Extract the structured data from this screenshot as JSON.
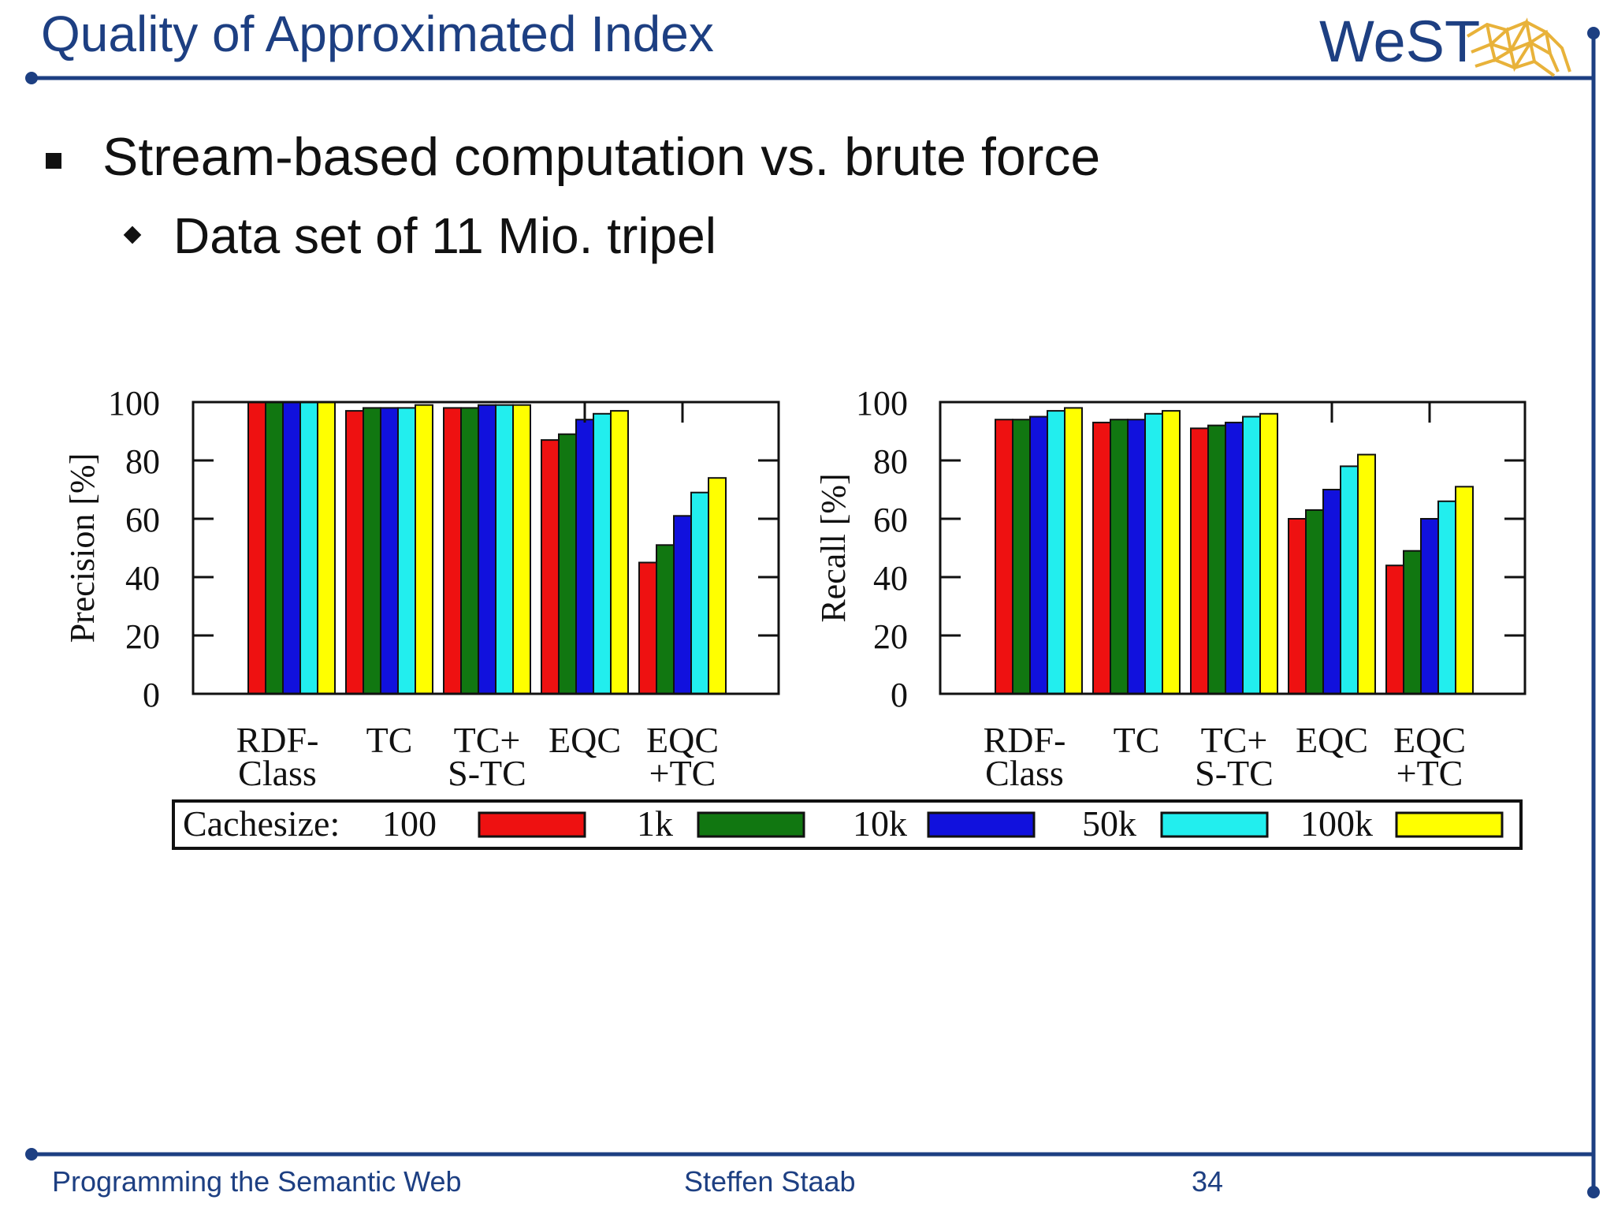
{
  "slide": {
    "title": "Quality of Approximated Index",
    "logo_text": "WeST",
    "bullet1": "Stream-based computation vs. brute force",
    "bullet2": "Data set of 11 Mio. tripel"
  },
  "footer": {
    "course": "Programming the Semantic Web",
    "author": "Steffen Staab",
    "page": "34"
  },
  "colors": {
    "brand": "#1d3f82",
    "logo_gold": "#e8b23a"
  },
  "chart_data": [
    {
      "type": "bar",
      "ylabel": "Precision [%]",
      "ylim": [
        0,
        100
      ],
      "yticks": [
        "0",
        "20",
        "40",
        "60",
        "80",
        "100"
      ],
      "categories": [
        [
          "RDF-",
          "Class"
        ],
        [
          "TC"
        ],
        [
          "TC+",
          "S-TC"
        ],
        [
          "EQC"
        ],
        [
          "EQC",
          "+TC"
        ]
      ],
      "series": [
        {
          "name": "100",
          "color": "#ee1111",
          "values": [
            100,
            97,
            98,
            87,
            45
          ]
        },
        {
          "name": "1k",
          "color": "#117711",
          "values": [
            100,
            98,
            98,
            89,
            51
          ]
        },
        {
          "name": "10k",
          "color": "#1111dd",
          "values": [
            100,
            98,
            99,
            94,
            61
          ]
        },
        {
          "name": "50k",
          "color": "#22eeee",
          "values": [
            100,
            98,
            99,
            96,
            69
          ]
        },
        {
          "name": "100k",
          "color": "#ffff00",
          "values": [
            100,
            99,
            99,
            97,
            74
          ]
        }
      ],
      "grid": false
    },
    {
      "type": "bar",
      "ylabel": "Recall [%]",
      "ylim": [
        0,
        100
      ],
      "yticks": [
        "0",
        "20",
        "40",
        "60",
        "80",
        "100"
      ],
      "categories": [
        [
          "RDF-",
          "Class"
        ],
        [
          "TC"
        ],
        [
          "TC+",
          "S-TC"
        ],
        [
          "EQC"
        ],
        [
          "EQC",
          "+TC"
        ]
      ],
      "series": [
        {
          "name": "100",
          "color": "#ee1111",
          "values": [
            94,
            93,
            91,
            60,
            44
          ]
        },
        {
          "name": "1k",
          "color": "#117711",
          "values": [
            94,
            94,
            92,
            63,
            49
          ]
        },
        {
          "name": "10k",
          "color": "#1111dd",
          "values": [
            95,
            94,
            93,
            70,
            60
          ]
        },
        {
          "name": "50k",
          "color": "#22eeee",
          "values": [
            97,
            96,
            95,
            78,
            66
          ]
        },
        {
          "name": "100k",
          "color": "#ffff00",
          "values": [
            98,
            97,
            96,
            82,
            71
          ]
        }
      ],
      "grid": false
    }
  ],
  "legend": {
    "title": "Cachesize:",
    "placement": "bottom",
    "entries": [
      {
        "label": "100",
        "color": "#ee1111"
      },
      {
        "label": "1k",
        "color": "#117711"
      },
      {
        "label": "10k",
        "color": "#1111dd"
      },
      {
        "label": "50k",
        "color": "#22eeee"
      },
      {
        "label": "100k",
        "color": "#ffff00"
      }
    ]
  }
}
